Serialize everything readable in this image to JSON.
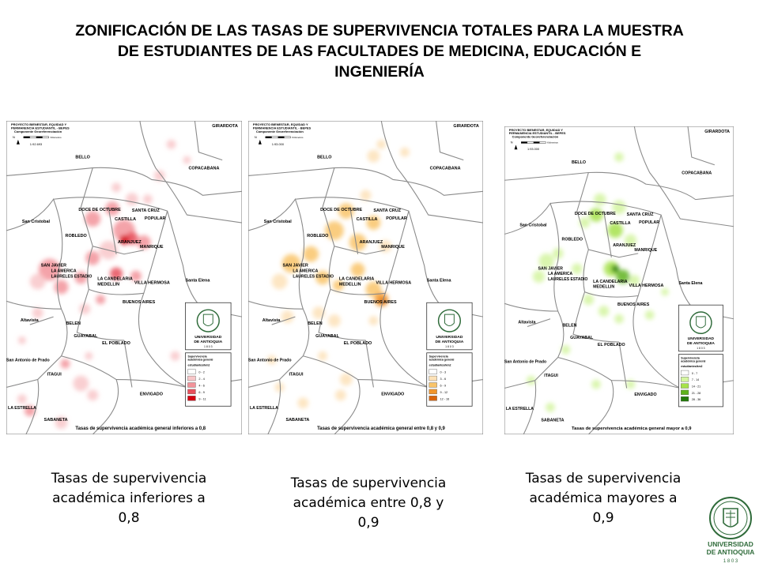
{
  "title_lines": [
    "ZONIFICACIÓN DE LAS TASAS DE SUPERVIVENCIA TOTALES PARA LA MUESTRA",
    "DE ESTUDIANTES DE LAS FACULTADES DE MEDICINA, EDUCACIÓN E",
    "INGENIERÍA"
  ],
  "map_header": {
    "line1": "PROYECTO BIENESTAR, EQUIDAD Y",
    "line2": "PERMANENCIA ESTUDIANTIL - BEPES",
    "line3": "Componente Georeferenciación",
    "north": "N",
    "km": "Kilómetros"
  },
  "place_labels": {
    "girardota": "GIRARDOTA",
    "bello": "BELLO",
    "copacabana": "COPACABANA",
    "san_cristobal": "San Cristobal",
    "doce_octubre": "DOCE DE OCTUBRE",
    "santa_cruz": "SANTA CRUZ",
    "castilla": "CASTILLA",
    "popular": "POPULAR",
    "robledo": "ROBLEDO",
    "aranjuez": "ARANJUEZ",
    "manrique": "MANRIQUE",
    "san_javier": "SAN JAVIER",
    "la_america": "LA AMERICA",
    "laureles": "LAURELES ESTADIO",
    "candelaria": "LA CANDELARIA",
    "medellin": "MEDELLIN",
    "villa_hermosa": "VILLA HERMOSA",
    "santa_elena": "Santa Elena",
    "buenos_aires": "BUENOS AIRES",
    "altavista": "Altavista",
    "belen": "BELEN",
    "guayabal": "GUAYABAL",
    "el_poblado": "EL POBLADO",
    "san_antonio": "San Antonio de Prado",
    "itagui": "ITAGUI",
    "envigado": "ENVIGADO",
    "la_estrella": "LA ESTRELLA",
    "sabaneta": "SABANETA"
  },
  "logo": {
    "line1": "UNIVERSIDAD",
    "line2": "DE ANTIOQUIA",
    "line3": "1 8 0 3"
  },
  "legend_title_1": "Supervivencia",
  "legend_title_2": "académica general",
  "legend_title_3": "estudiantes/km2",
  "maps": [
    {
      "scale": "1:92.693",
      "footer": "Tasas de supervivencia académica general inferiores a 0,8",
      "caption": "Tasas de supervivencia académica inferiores a 0,8",
      "legend": [
        "0 - 2",
        "2 - 4",
        "4 - 6",
        "6 - 9",
        "9 - 11"
      ],
      "colors": [
        "#ffffff",
        "#f8c7c9",
        "#f2939a",
        "#e8505c",
        "#d40010"
      ]
    },
    {
      "scale": "1:93.000",
      "footer": "Tasas de supervivencia académica general entre 0,8 y 0,9",
      "caption": "Tasas de supervivencia académica entre 0,8 y 0,9",
      "legend": [
        "0 - 3",
        "3 - 6",
        "6 - 9",
        "9 - 12",
        "12 - 16"
      ],
      "colors": [
        "#ffffff",
        "#fde2b8",
        "#f9c46a",
        "#f2962c",
        "#d9640a"
      ]
    },
    {
      "scale": "1:93.000",
      "footer": "Tasas de supervivencia académica general mayor a 0,9",
      "caption": "Tasas de supervivencia académica mayores a 0,9",
      "legend": [
        "0 - 7",
        "7 - 14",
        "14 - 21",
        "21 - 28",
        "28 - 36"
      ],
      "colors": [
        "#ffffff",
        "#d4f5a0",
        "#a6e24a",
        "#5fb31c",
        "#237a0a"
      ]
    }
  ]
}
